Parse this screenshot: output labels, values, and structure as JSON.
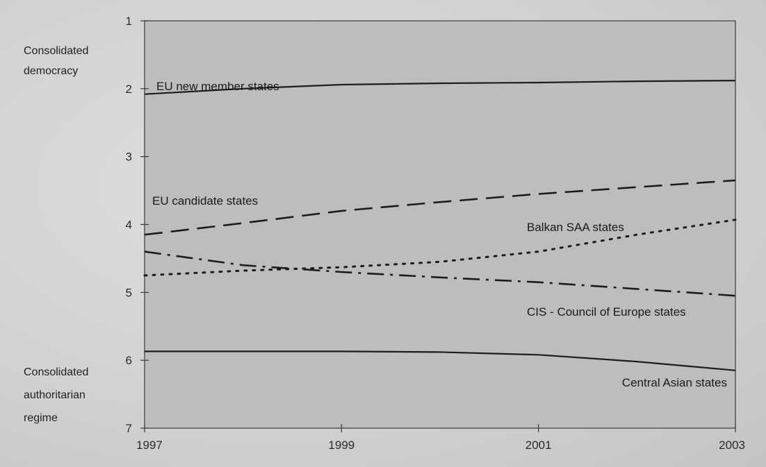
{
  "chart_data": {
    "type": "line",
    "x": [
      1997,
      1998,
      1999,
      2000,
      2001,
      2002,
      2003
    ],
    "x_ticks": [
      "1997",
      "1999",
      "2001",
      "2003"
    ],
    "xlim": [
      1997,
      2003
    ],
    "y_ticks": [
      "1",
      "2",
      "3",
      "4",
      "5",
      "6",
      "7"
    ],
    "ylim": [
      1,
      7
    ],
    "y_inverted": true,
    "grid": false,
    "y_annotations": {
      "top": [
        "Consolidated",
        "democracy"
      ],
      "bottom": [
        "Consolidated",
        "authoritarian",
        "regime"
      ]
    },
    "series": [
      {
        "name": "EU new member states",
        "style": "solid",
        "color": "#1c1c1c",
        "values": [
          2.08,
          2.0,
          1.94,
          1.92,
          1.91,
          1.89,
          1.88
        ]
      },
      {
        "name": "EU candidate states",
        "style": "dashed",
        "color": "#1c1c1c",
        "values": [
          4.15,
          3.98,
          3.8,
          3.67,
          3.55,
          3.45,
          3.35
        ]
      },
      {
        "name": "Balkan SAA states",
        "style": "dotted",
        "color": "#1c1c1c",
        "values": [
          4.75,
          4.68,
          4.63,
          4.55,
          4.4,
          4.15,
          3.93
        ]
      },
      {
        "name": "CIS - Council of Europe states",
        "style": "dashdot",
        "color": "#1c1c1c",
        "values": [
          4.4,
          4.6,
          4.7,
          4.78,
          4.85,
          4.95,
          5.05
        ]
      },
      {
        "name": "Central Asian states",
        "style": "solid",
        "color": "#1c1c1c",
        "values": [
          5.87,
          5.87,
          5.87,
          5.88,
          5.92,
          6.02,
          6.15
        ]
      }
    ]
  }
}
